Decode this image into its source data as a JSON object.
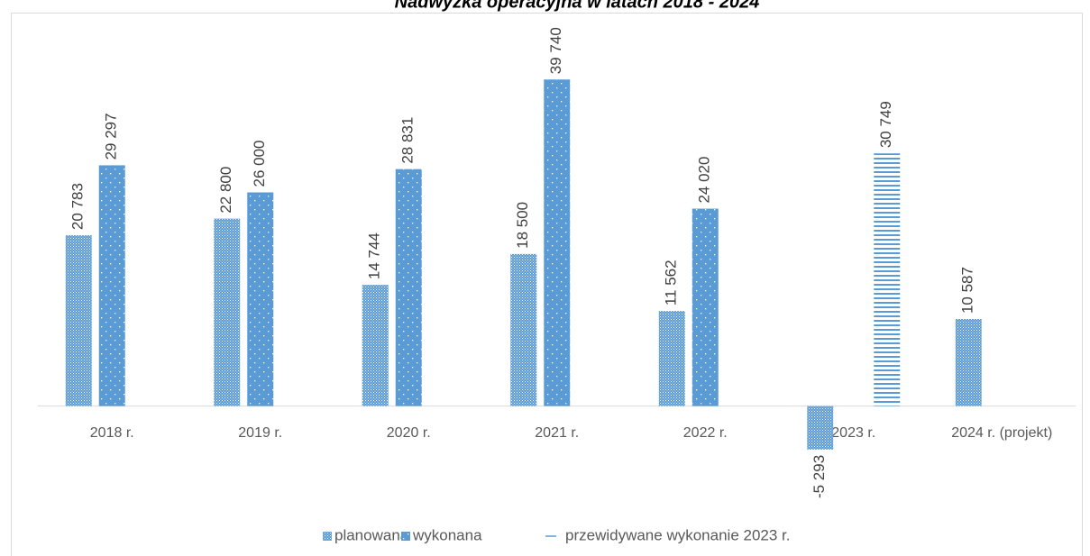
{
  "chart_data": {
    "type": "bar",
    "title": "Nadwyżka operacyjna w latach 2018 - 2024",
    "categories": [
      "2018 r.",
      "2019 r.",
      "2020 r.",
      "2021 r.",
      "2022 r.",
      "2023 r.",
      "2024 r. (projekt)"
    ],
    "series": [
      {
        "name": "planowana",
        "color": "#5b9bd5",
        "values": [
          20783,
          22800,
          14744,
          18500,
          11562,
          -5293,
          10587
        ],
        "value_labels": [
          "20 783",
          "22 800",
          "14 744",
          "18 500",
          "11 562",
          "-5 293",
          "10 587"
        ]
      },
      {
        "name": "wykonana",
        "color": "#5b9bd5",
        "values": [
          29297,
          26000,
          28831,
          39740,
          24020,
          null,
          null
        ],
        "value_labels": [
          "29 297",
          "26 000",
          "28 831",
          "39 740",
          "24 020",
          null,
          null
        ]
      },
      {
        "name": "przewidywane wykonanie 2023 r.",
        "color": "#5b9bd5",
        "values": [
          null,
          null,
          null,
          null,
          null,
          30749,
          null
        ],
        "value_labels": [
          null,
          null,
          null,
          null,
          null,
          "30 749",
          null
        ]
      }
    ],
    "ylim": [
      -12000,
      47000
    ],
    "legend": "bottom"
  }
}
